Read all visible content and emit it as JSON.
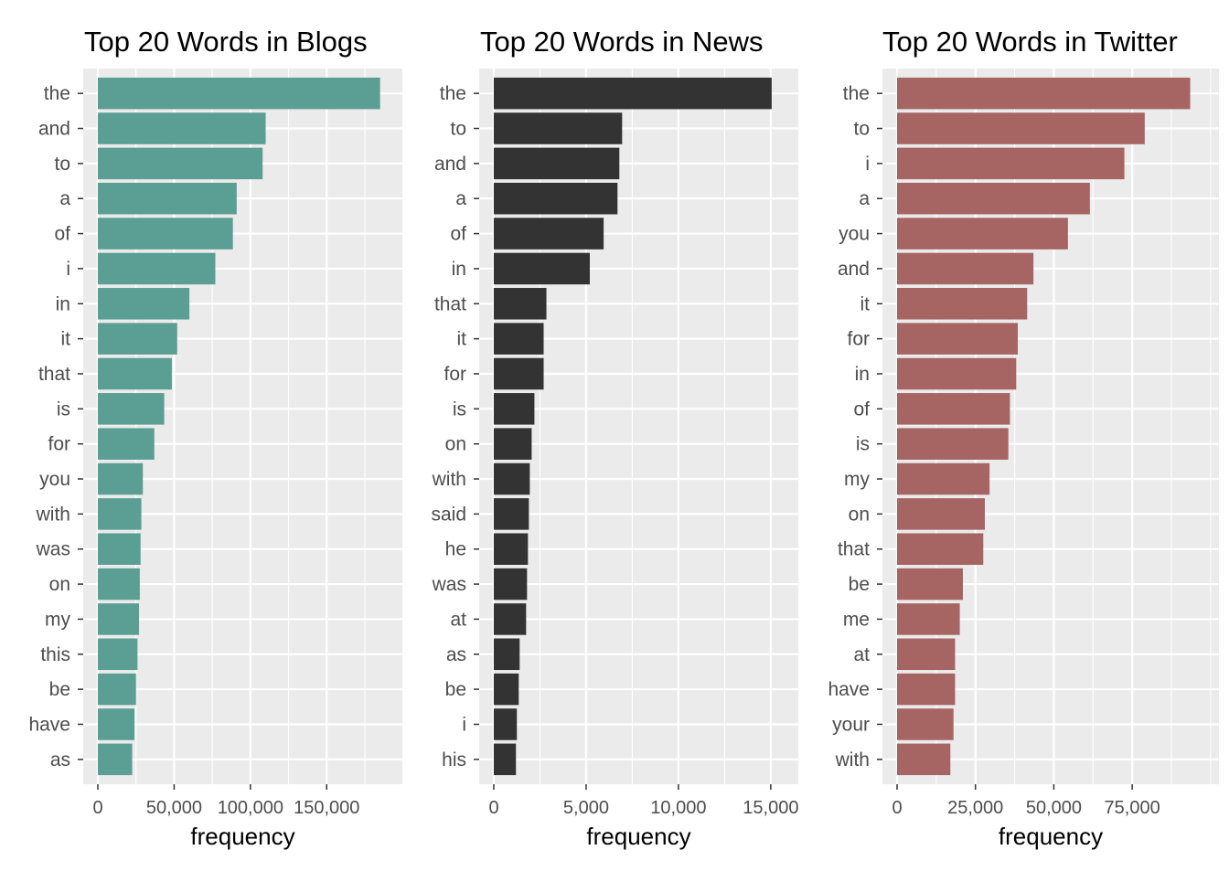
{
  "chart_data": [
    {
      "type": "bar",
      "orientation": "horizontal",
      "title": "Top 20 Words in Blogs",
      "xlabel": "frequency",
      "ylabel": "",
      "color": "#5A9E94",
      "xlim": [
        0,
        190000
      ],
      "xticks": [
        0,
        50000,
        100000,
        150000
      ],
      "xtick_labels": [
        "0",
        "50,000",
        "100,000",
        "150,000"
      ],
      "grid": true,
      "categories": [
        "the",
        "and",
        "to",
        "a",
        "of",
        "i",
        "in",
        "it",
        "that",
        "is",
        "for",
        "you",
        "with",
        "was",
        "on",
        "my",
        "this",
        "be",
        "have",
        "as"
      ],
      "values": [
        185000,
        110000,
        108000,
        91000,
        88500,
        77000,
        60000,
        52000,
        48500,
        43500,
        37000,
        29500,
        28500,
        28000,
        27500,
        27000,
        26000,
        25000,
        24000,
        22500
      ]
    },
    {
      "type": "bar",
      "orientation": "horizontal",
      "title": "Top 20 Words in News",
      "xlabel": "frequency",
      "ylabel": "",
      "color": "#333333",
      "xlim": [
        0,
        15700
      ],
      "xticks": [
        0,
        5000,
        10000,
        15000
      ],
      "xtick_labels": [
        "0",
        "5,000",
        "10,000",
        "15,000"
      ],
      "grid": true,
      "categories": [
        "the",
        "to",
        "and",
        "a",
        "of",
        "in",
        "that",
        "it",
        "for",
        "is",
        "on",
        "with",
        "said",
        "he",
        "was",
        "at",
        "as",
        "be",
        "i",
        "his"
      ],
      "values": [
        15050,
        6950,
        6800,
        6700,
        5950,
        5200,
        2850,
        2700,
        2700,
        2200,
        2050,
        1950,
        1900,
        1850,
        1800,
        1750,
        1400,
        1350,
        1250,
        1200
      ]
    },
    {
      "type": "bar",
      "orientation": "horizontal",
      "title": "Top 20 Words in Twitter",
      "xlabel": "frequency",
      "ylabel": "",
      "color": "#A66462",
      "xlim": [
        0,
        98000
      ],
      "xticks": [
        0,
        25000,
        50000,
        75000
      ],
      "xtick_labels": [
        "0",
        "25,000",
        "50,000",
        "75,000"
      ],
      "grid": true,
      "categories": [
        "the",
        "to",
        "i",
        "a",
        "you",
        "and",
        "it",
        "for",
        "in",
        "of",
        "is",
        "my",
        "on",
        "that",
        "be",
        "me",
        "at",
        "have",
        "your",
        "with"
      ],
      "values": [
        93500,
        79000,
        72500,
        61500,
        54500,
        43500,
        41500,
        38500,
        38000,
        36000,
        35500,
        29500,
        28000,
        27500,
        21000,
        20000,
        18500,
        18500,
        18000,
        17000
      ]
    }
  ]
}
